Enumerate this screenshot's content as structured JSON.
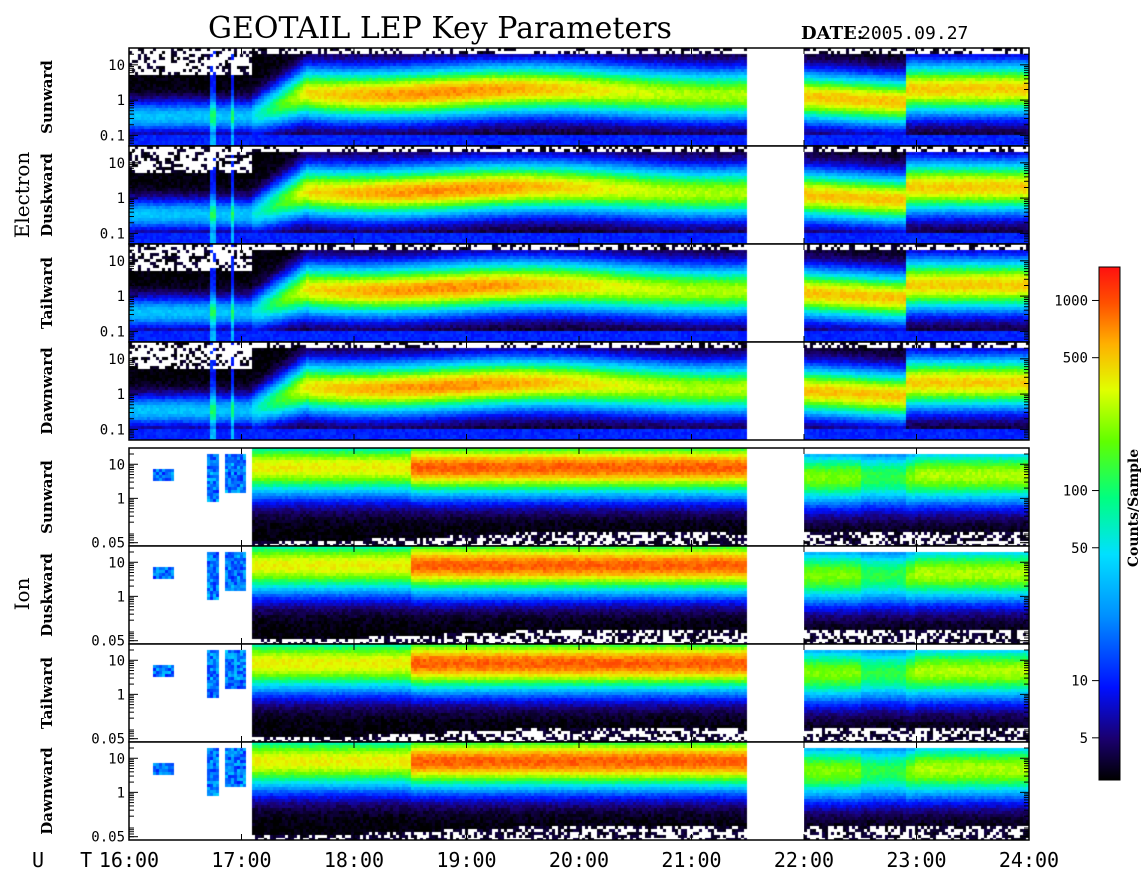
{
  "title": "GEOTAIL LEP Key Parameters",
  "date_label": "DATE:",
  "date_value": "2005.09.27",
  "x_axis_label": "U T",
  "x_ticks": [
    "16:00",
    "17:00",
    "18:00",
    "19:00",
    "20:00",
    "21:00",
    "22:00",
    "23:00",
    "24:00"
  ],
  "colorbar": {
    "label": "Counts/Sample",
    "ticks": [
      "1000",
      "500",
      "100",
      "50",
      "10",
      "5"
    ],
    "tick_values": [
      1000,
      500,
      100,
      50,
      10,
      5
    ],
    "range": [
      3,
      1500
    ],
    "scale": "log"
  },
  "groups": [
    {
      "label": "Electron",
      "panels": [
        "Sunward",
        "Duskward",
        "Tailward",
        "Dawnward"
      ]
    },
    {
      "label": "Ion",
      "panels": [
        "Sunward",
        "Duskward",
        "Tailward",
        "Dawnward"
      ]
    }
  ],
  "electron_y_ticks": [
    "10",
    "1",
    "0.1"
  ],
  "ion_y_ticks": [
    "10",
    "1",
    "0.05"
  ],
  "chart_data": {
    "type": "heatmap",
    "title": "GEOTAIL LEP Key Parameters",
    "xlabel": "U T",
    "x_range": [
      "16:00",
      "24:00"
    ],
    "data_gap": [
      "21:30",
      "22:00"
    ],
    "y_scale": "log",
    "electron_y_range": [
      0.05,
      30
    ],
    "ion_y_range": [
      0.04,
      30
    ],
    "color_scale": {
      "name": "Counts/Sample",
      "scale": "log",
      "min": 3,
      "max": 1500
    },
    "panels": [
      {
        "group": "Electron",
        "direction": "Sunward"
      },
      {
        "group": "Electron",
        "direction": "Duskward"
      },
      {
        "group": "Electron",
        "direction": "Tailward"
      },
      {
        "group": "Electron",
        "direction": "Dawnward"
      },
      {
        "group": "Ion",
        "direction": "Sunward"
      },
      {
        "group": "Ion",
        "direction": "Duskward"
      },
      {
        "group": "Ion",
        "direction": "Tailward"
      },
      {
        "group": "Ion",
        "direction": "Dawnward"
      }
    ]
  }
}
